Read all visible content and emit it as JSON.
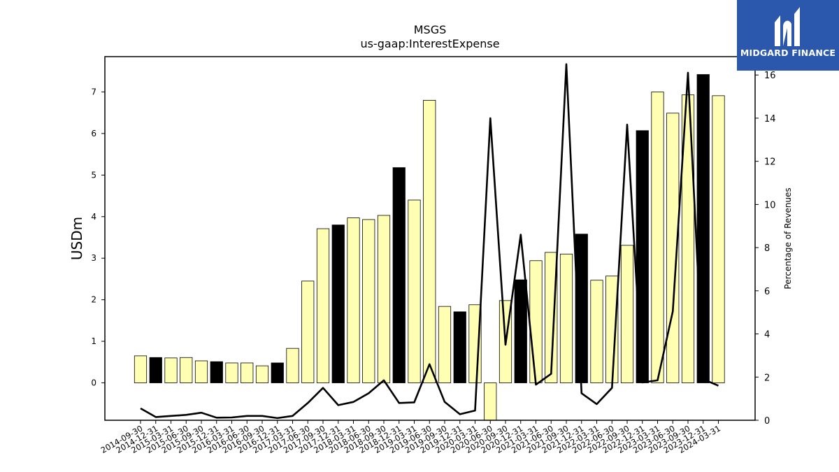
{
  "chart_data": {
    "type": "bar",
    "title": "MSGS",
    "subtitle": "us-gaap:InterestExpense",
    "ylabel": "USDm",
    "ylabel_right": "Percentage of Revenues",
    "ylim": [
      -0.9,
      7.85
    ],
    "ylim_right": [
      0,
      16.85
    ],
    "yticks": [
      0,
      1,
      2,
      3,
      4,
      5,
      6,
      7
    ],
    "yticks_right": [
      0,
      2,
      4,
      6,
      8,
      10,
      12,
      14,
      16
    ],
    "categories": [
      "2014-09-30",
      "2014-12-31",
      "2015-03-31",
      "2015-06-30",
      "2015-09-30",
      "2015-12-31",
      "2016-03-31",
      "2016-06-30",
      "2016-09-30",
      "2016-12-31",
      "2017-03-31",
      "2017-06-30",
      "2017-09-30",
      "2017-12-31",
      "2018-03-31",
      "2018-06-30",
      "2018-09-30",
      "2018-12-31",
      "2019-03-31",
      "2019-06-30",
      "2019-09-30",
      "2019-12-31",
      "2020-03-31",
      "2020-06-30",
      "2020-09-30",
      "2020-12-31",
      "2021-03-31",
      "2021-06-30",
      "2021-09-30",
      "2021-12-31",
      "2022-03-31",
      "2022-06-30",
      "2022-09-30",
      "2022-12-31",
      "2023-03-31",
      "2023-06-30",
      "2023-09-30",
      "2023-12-31",
      "2024-03-31"
    ],
    "series": [
      {
        "values": [
          0.65,
          0.61,
          0.6,
          0.61,
          0.53,
          0.51,
          0.48,
          0.48,
          0.41,
          0.48,
          0.83,
          2.45,
          3.71,
          3.8,
          3.97,
          3.93,
          4.03,
          5.18,
          4.4,
          6.8,
          1.84,
          1.71,
          1.88,
          -1.0,
          1.98,
          2.48,
          2.94,
          3.14,
          3.1,
          3.58,
          2.47,
          2.57,
          3.31,
          6.07,
          7.0,
          6.49,
          6.93,
          7.42,
          6.91
        ],
        "colors": [
          "#ffffb3",
          "#000000",
          "#ffffb3",
          "#ffffb3",
          "#ffffb3",
          "#000000",
          "#ffffb3",
          "#ffffb3",
          "#ffffb3",
          "#000000",
          "#ffffb3",
          "#ffffb3",
          "#ffffb3",
          "#000000",
          "#ffffb3",
          "#ffffb3",
          "#ffffb3",
          "#000000",
          "#ffffb3",
          "#ffffb3",
          "#ffffb3",
          "#000000",
          "#ffffb3",
          "#ffffb3",
          "#ffffb3",
          "#000000",
          "#ffffb3",
          "#ffffb3",
          "#ffffb3",
          "#000000",
          "#ffffb3",
          "#ffffb3",
          "#ffffb3",
          "#000000",
          "#ffffb3",
          "#ffffb3",
          "#ffffb3",
          "#000000",
          "#ffffb3"
        ]
      },
      {
        "type": "line",
        "axis": "right",
        "color": "#000000",
        "values": [
          0.55,
          0.15,
          0.2,
          0.25,
          0.35,
          0.12,
          0.13,
          0.2,
          0.2,
          0.1,
          0.2,
          0.8,
          1.5,
          0.7,
          0.85,
          1.25,
          1.85,
          0.8,
          0.83,
          2.6,
          0.85,
          0.28,
          0.45,
          14.0,
          3.5,
          8.6,
          1.65,
          2.15,
          16.5,
          1.25,
          0.75,
          1.5,
          13.7,
          1.75,
          1.85,
          5.05,
          16.1,
          1.9,
          1.6
        ]
      }
    ],
    "grid": false,
    "legend": "none"
  },
  "logo": {
    "text": "MIDGARD FINANCE",
    "icon": "midgard-logo-icon"
  }
}
